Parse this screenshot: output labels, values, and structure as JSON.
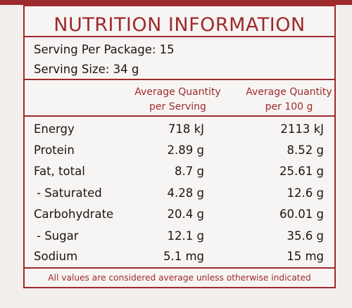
{
  "title": "NUTRITION INFORMATION",
  "serving_per_package": "Serving Per Package: 15",
  "serving_size": "Serving Size: 34 g",
  "columns": {
    "per_serving": [
      "Average Quantity",
      "per Serving"
    ],
    "per_100g": [
      "Average Quantity",
      "per 100 g"
    ]
  },
  "rows": [
    {
      "label": "Energy",
      "per_serving": "718 kJ",
      "per_100g": "2113 kJ"
    },
    {
      "label": "Protein",
      "per_serving": "2.89 g",
      "per_100g": "8.52 g"
    },
    {
      "label": "Fat, total",
      "per_serving": "8.7 g",
      "per_100g": "25.61 g"
    },
    {
      "label": "- Saturated",
      "per_serving": "4.28 g",
      "per_100g": "12.6 g"
    },
    {
      "label": "Carbohydrate",
      "per_serving": "20.4 g",
      "per_100g": "60.01 g"
    },
    {
      "label": "- Sugar",
      "per_serving": "12.1 g",
      "per_100g": "35.6 g"
    },
    {
      "label": "Sodium",
      "per_serving": "5.1 mg",
      "per_100g": "15 mg"
    }
  ],
  "footer": "All values are considered average unless otherwise indicated",
  "colors": {
    "accent": "#9d2a2d",
    "text": "#1e1414",
    "panel": "#f7f5f3",
    "background": "#f1eeec"
  }
}
